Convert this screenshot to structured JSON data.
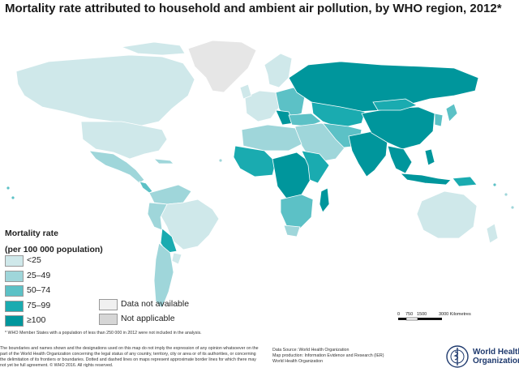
{
  "title": "Mortality rate attributed to household and ambient air pollution, by WHO region, 2012*",
  "legend": {
    "title_line1": "Mortality rate",
    "title_line2": "(per 100 000 population)",
    "classes": [
      {
        "label": "<25",
        "color": "#cfe8ea"
      },
      {
        "label": "25–49",
        "color": "#9fd6da"
      },
      {
        "label": "50–74",
        "color": "#5cc1c6"
      },
      {
        "label": "75–99",
        "color": "#1aabb0"
      },
      {
        "label": "≥100",
        "color": "#00969c"
      }
    ],
    "other": [
      {
        "label": "Data not available",
        "color": "#f0f0f0"
      },
      {
        "label": "Not applicable",
        "color": "#d6d6d6"
      }
    ]
  },
  "scale": {
    "ticks": [
      "0",
      "750",
      "1500",
      "3000 Kilometres"
    ]
  },
  "footnote": "* WHO Member States with a population of less than 250 000 in 2012 were not included in the analysis.",
  "disclaimer": "The boundaries and names shown and the designations used on this map do not imply the expression of any opinion whatsoever on the part of the World Health Organization concerning the legal status of any country, territory, city or area or of its authorities, or concerning the delimitation of its frontiers or boundaries. Dotted and dashed lines on maps represent approximate border lines for which there may not yet be full agreement. © WHO 2016. All rights reserved.",
  "source": {
    "line1": "Data Source: World Health Organization",
    "line2": "Map production: Information Evidence and Research (IER)",
    "line3": "World Health Organization"
  },
  "logo": {
    "line1": "World Health",
    "line2": "Organization"
  }
}
